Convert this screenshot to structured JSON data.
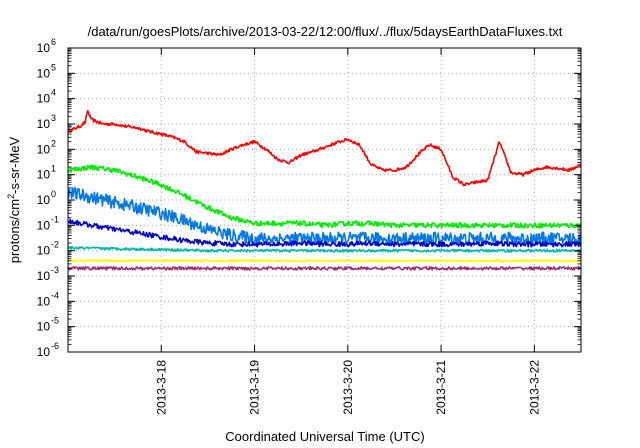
{
  "chart_data": {
    "type": "line",
    "title": "/data/run/goesPlots/archive/2013-03-22/12:00/flux/../flux/5daysEarthDataFluxes.txt",
    "xlabel": "Coordinated Universal Time (UTC)",
    "ylabel": "protons/cm²-s-sr-MeV",
    "ylabel_parts": {
      "base": "protons/cm",
      "sup": "2",
      "rest": "-s-sr-MeV"
    },
    "y_scale": "log",
    "ylim": [
      1e-06,
      1000000.0
    ],
    "y_ticks": [
      {
        "value": 1e-06,
        "base": "10",
        "exp": "-6"
      },
      {
        "value": 1e-05,
        "base": "10",
        "exp": "-5"
      },
      {
        "value": 0.0001,
        "base": "10",
        "exp": "-4"
      },
      {
        "value": 0.001,
        "base": "10",
        "exp": "-3"
      },
      {
        "value": 0.01,
        "base": "10",
        "exp": "-2"
      },
      {
        "value": 0.1,
        "base": "10",
        "exp": "-1"
      },
      {
        "value": 1.0,
        "base": "10",
        "exp": "0"
      },
      {
        "value": 10.0,
        "base": "10",
        "exp": "1"
      },
      {
        "value": 100.0,
        "base": "10",
        "exp": "2"
      },
      {
        "value": 1000.0,
        "base": "10",
        "exp": "3"
      },
      {
        "value": 10000.0,
        "base": "10",
        "exp": "4"
      },
      {
        "value": 100000.0,
        "base": "10",
        "exp": "5"
      },
      {
        "value": 1000000.0,
        "base": "10",
        "exp": "6"
      }
    ],
    "xlim": [
      "2013-03-17 00:00",
      "2013-03-22 12:00"
    ],
    "x_ticks": [
      {
        "value": "2013-03-18 00:00",
        "label": "2013-3-18"
      },
      {
        "value": "2013-03-19 00:00",
        "label": "2013-3-19"
      },
      {
        "value": "2013-03-20 00:00",
        "label": "2013-3-20"
      },
      {
        "value": "2013-03-21 00:00",
        "label": "2013-3-21"
      },
      {
        "value": "2013-03-22 00:00",
        "label": "2013-3-22"
      }
    ],
    "grid": true,
    "legend": "none",
    "series": [
      {
        "color": "#ff0000",
        "noise": 0.06,
        "x": [
          "2013-03-17 00:00",
          "2013-03-17 03:00",
          "2013-03-17 04:30",
          "2013-03-17 05:00",
          "2013-03-17 06:00",
          "2013-03-17 09:00",
          "2013-03-17 12:00",
          "2013-03-17 15:00",
          "2013-03-17 18:00",
          "2013-03-17 21:00",
          "2013-03-18 00:00",
          "2013-03-18 03:00",
          "2013-03-18 06:00",
          "2013-03-18 09:00",
          "2013-03-18 12:00",
          "2013-03-18 15:00",
          "2013-03-18 18:00",
          "2013-03-18 21:00",
          "2013-03-19 00:00",
          "2013-03-19 03:00",
          "2013-03-19 06:00",
          "2013-03-19 09:00",
          "2013-03-19 12:00",
          "2013-03-19 15:00",
          "2013-03-19 18:00",
          "2013-03-19 21:00",
          "2013-03-20 00:00",
          "2013-03-20 03:00",
          "2013-03-20 06:00",
          "2013-03-20 09:00",
          "2013-03-20 12:00",
          "2013-03-20 15:00",
          "2013-03-20 18:00",
          "2013-03-20 21:00",
          "2013-03-21 00:00",
          "2013-03-21 03:00",
          "2013-03-21 06:00",
          "2013-03-21 09:00",
          "2013-03-21 12:00",
          "2013-03-21 15:00",
          "2013-03-21 18:00",
          "2013-03-21 21:00",
          "2013-03-22 00:00",
          "2013-03-22 03:00",
          "2013-03-22 06:00",
          "2013-03-22 09:00",
          "2013-03-22 12:00"
        ],
        "y": [
          500,
          800,
          1200,
          3500,
          1500,
          1000,
          1000,
          800,
          700,
          500,
          400,
          300,
          200,
          80,
          70,
          60,
          100,
          150,
          200,
          100,
          40,
          30,
          60,
          80,
          120,
          180,
          250,
          150,
          25,
          15,
          15,
          20,
          60,
          150,
          100,
          8,
          4,
          5,
          6,
          200,
          12,
          10,
          15,
          20,
          18,
          15,
          25
        ]
      },
      {
        "color": "#00ee00",
        "noise": 0.1,
        "x": [
          "2013-03-17 00:00",
          "2013-03-17 06:00",
          "2013-03-17 12:00",
          "2013-03-17 18:00",
          "2013-03-18 00:00",
          "2013-03-18 06:00",
          "2013-03-18 12:00",
          "2013-03-18 18:00",
          "2013-03-19 00:00",
          "2013-03-19 06:00",
          "2013-03-19 12:00",
          "2013-03-19 18:00",
          "2013-03-20 00:00",
          "2013-03-20 06:00",
          "2013-03-20 12:00",
          "2013-03-20 18:00",
          "2013-03-21 00:00",
          "2013-03-21 06:00",
          "2013-03-21 12:00",
          "2013-03-21 18:00",
          "2013-03-22 00:00",
          "2013-03-22 06:00",
          "2013-03-22 12:00"
        ],
        "y": [
          15,
          20,
          15,
          8,
          4,
          1.5,
          0.5,
          0.2,
          0.12,
          0.12,
          0.12,
          0.1,
          0.12,
          0.12,
          0.1,
          0.1,
          0.1,
          0.1,
          0.1,
          0.1,
          0.1,
          0.1,
          0.1
        ]
      },
      {
        "color": "#0077ee",
        "noise": 0.25,
        "x": [
          "2013-03-17 00:00",
          "2013-03-17 06:00",
          "2013-03-17 12:00",
          "2013-03-17 18:00",
          "2013-03-18 00:00",
          "2013-03-18 06:00",
          "2013-03-18 12:00",
          "2013-03-18 18:00",
          "2013-03-19 00:00",
          "2013-03-19 06:00",
          "2013-03-19 12:00",
          "2013-03-19 18:00",
          "2013-03-20 00:00",
          "2013-03-20 06:00",
          "2013-03-20 12:00",
          "2013-03-20 18:00",
          "2013-03-21 00:00",
          "2013-03-21 06:00",
          "2013-03-21 12:00",
          "2013-03-21 18:00",
          "2013-03-22 00:00",
          "2013-03-22 06:00",
          "2013-03-22 12:00"
        ],
        "y": [
          2,
          1.3,
          0.8,
          0.5,
          0.3,
          0.15,
          0.07,
          0.04,
          0.03,
          0.03,
          0.03,
          0.03,
          0.03,
          0.03,
          0.03,
          0.03,
          0.03,
          0.03,
          0.03,
          0.03,
          0.03,
          0.03,
          0.03
        ]
      },
      {
        "color": "#0000cc",
        "noise": 0.1,
        "x": [
          "2013-03-17 00:00",
          "2013-03-17 06:00",
          "2013-03-17 12:00",
          "2013-03-17 18:00",
          "2013-03-18 00:00",
          "2013-03-18 06:00",
          "2013-03-18 12:00",
          "2013-03-18 18:00",
          "2013-03-19 00:00",
          "2013-03-19 06:00",
          "2013-03-19 12:00",
          "2013-03-19 18:00",
          "2013-03-20 00:00",
          "2013-03-20 06:00",
          "2013-03-20 12:00",
          "2013-03-20 18:00",
          "2013-03-21 00:00",
          "2013-03-21 06:00",
          "2013-03-21 12:00",
          "2013-03-21 18:00",
          "2013-03-22 00:00",
          "2013-03-22 06:00",
          "2013-03-22 12:00"
        ],
        "y": [
          0.15,
          0.1,
          0.07,
          0.05,
          0.035,
          0.025,
          0.02,
          0.018,
          0.018,
          0.018,
          0.02,
          0.018,
          0.018,
          0.02,
          0.018,
          0.018,
          0.018,
          0.018,
          0.02,
          0.018,
          0.018,
          0.018,
          0.018
        ]
      },
      {
        "color": "#00bbaa",
        "noise": 0.05,
        "x": [
          "2013-03-17 00:00",
          "2013-03-17 12:00",
          "2013-03-18 00:00",
          "2013-03-18 12:00",
          "2013-03-19 00:00",
          "2013-03-19 12:00",
          "2013-03-20 00:00",
          "2013-03-20 12:00",
          "2013-03-21 00:00",
          "2013-03-21 12:00",
          "2013-03-22 00:00",
          "2013-03-22 12:00"
        ],
        "y": [
          0.013,
          0.012,
          0.011,
          0.01,
          0.01,
          0.01,
          0.01,
          0.01,
          0.01,
          0.01,
          0.01,
          0.01
        ]
      },
      {
        "color": "#ffff00",
        "noise": 0.04,
        "x": [
          "2013-03-17 00:00",
          "2013-03-18 00:00",
          "2013-03-19 00:00",
          "2013-03-20 00:00",
          "2013-03-21 00:00",
          "2013-03-22 00:00",
          "2013-03-22 12:00"
        ],
        "y": [
          0.004,
          0.004,
          0.004,
          0.004,
          0.004,
          0.004,
          0.004
        ]
      },
      {
        "color": "#993377",
        "noise": 0.06,
        "x": [
          "2013-03-17 00:00",
          "2013-03-18 00:00",
          "2013-03-19 00:00",
          "2013-03-20 00:00",
          "2013-03-21 00:00",
          "2013-03-22 00:00",
          "2013-03-22 12:00"
        ],
        "y": [
          0.002,
          0.002,
          0.002,
          0.002,
          0.002,
          0.002,
          0.002
        ]
      }
    ]
  }
}
